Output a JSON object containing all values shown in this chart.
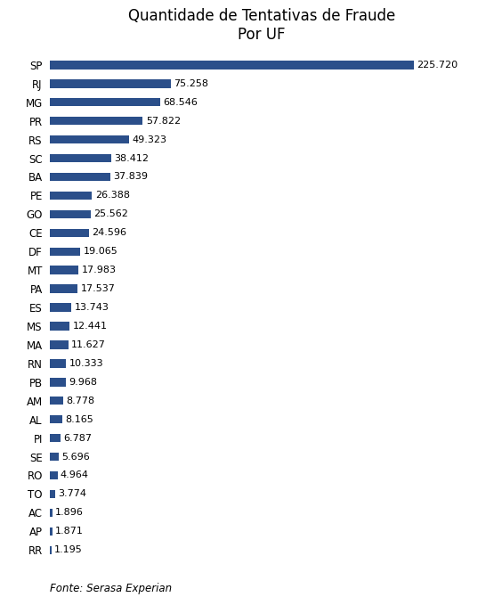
{
  "title_line1": "Quantidade de Tentativas de Fraude",
  "title_line2": "Por UF",
  "footnote": "Fonte: Serasa Experian",
  "bar_color": "#2B4F8A",
  "background_color": "#FFFFFF",
  "categories": [
    "SP",
    "RJ",
    "MG",
    "PR",
    "RS",
    "SC",
    "BA",
    "PE",
    "GO",
    "CE",
    "DF",
    "MT",
    "PA",
    "ES",
    "MS",
    "MA",
    "RN",
    "PB",
    "AM",
    "AL",
    "PI",
    "SE",
    "RO",
    "TO",
    "AC",
    "AP",
    "RR"
  ],
  "values": [
    225720,
    75258,
    68546,
    57822,
    49323,
    38412,
    37839,
    26388,
    25562,
    24596,
    19065,
    17983,
    17537,
    13743,
    12441,
    11627,
    10333,
    9968,
    8778,
    8165,
    6787,
    5696,
    4964,
    3774,
    1896,
    1871,
    1195
  ],
  "labels": [
    "225.720",
    "75.258",
    "68.546",
    "57.822",
    "49.323",
    "38.412",
    "37.839",
    "26.388",
    "25.562",
    "24.596",
    "19.065",
    "17.983",
    "17.537",
    "13.743",
    "12.441",
    "11.627",
    "10.333",
    "9.968",
    "8.778",
    "8.165",
    "6.787",
    "5.696",
    "4.964",
    "3.774",
    "1.896",
    "1.871",
    "1.195"
  ],
  "title_fontsize": 12,
  "label_fontsize": 8,
  "tick_fontsize": 8.5,
  "footnote_fontsize": 8.5
}
